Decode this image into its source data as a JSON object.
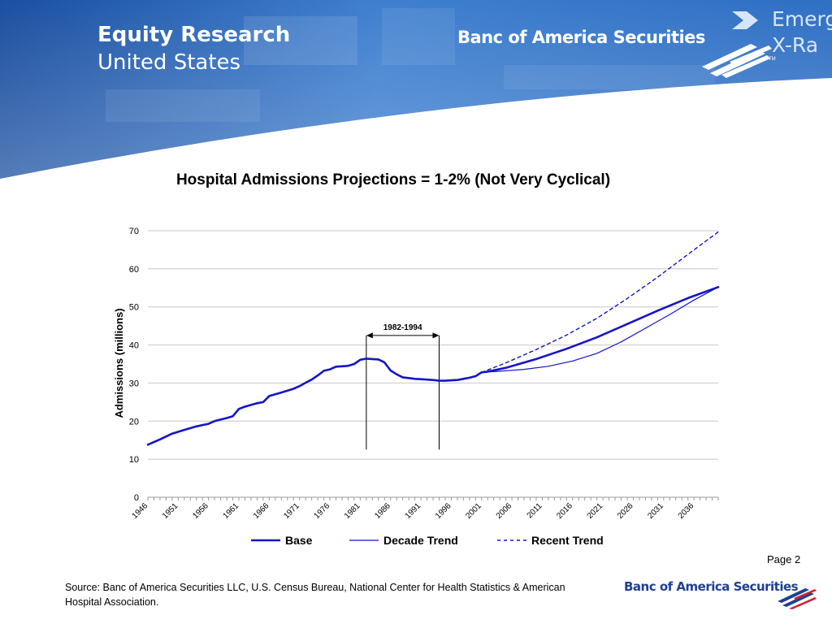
{
  "header": {
    "title": "Equity Research",
    "subtitle": "United States",
    "brand": "Banc of America Securities",
    "corner_text": [
      "Emerg",
      "X-Ra"
    ],
    "colors": {
      "banner": "#2f6fc4",
      "banner_dark": "#1b4fa0"
    },
    "icons": [
      "arrow-right-icon",
      "bank-flag-logo-icon"
    ]
  },
  "footer": {
    "page": "Page 2",
    "source": "Source: Banc of America Securities LLC, U.S. Census Bureau, National Center for Health Statistics & American Hospital Association.",
    "brand": "Banc of America Securities"
  },
  "chart_data": {
    "type": "line",
    "title": "Hospital Admissions Projections = 1-2% (Not Very Cyclical)",
    "ylabel": "Admissions (millions)",
    "xlabel": "",
    "ylim": [
      0,
      70
    ],
    "yticks": [
      0,
      10,
      20,
      30,
      40,
      50,
      60,
      70
    ],
    "xlim": [
      1946,
      2040
    ],
    "xticks": [
      "1946",
      "1951",
      "1956",
      "1961",
      "1966",
      "1971",
      "1976",
      "1981",
      "1986",
      "1991",
      "1996",
      "2001",
      "2006",
      "2011",
      "2016",
      "2021",
      "2026",
      "2031",
      "2036"
    ],
    "grid": true,
    "legend_position": "bottom",
    "annotation": {
      "label": "1982-1994",
      "x_start": 1982,
      "x_end": 1994
    },
    "series": [
      {
        "name": "Base",
        "color": "#1414c8",
        "style": "solid-thick",
        "x": [
          1946,
          1948,
          1950,
          1952,
          1954,
          1956,
          1957,
          1959,
          1960,
          1961,
          1962,
          1964,
          1965,
          1966,
          1968,
          1970,
          1971,
          1972,
          1973,
          1974,
          1975,
          1976,
          1977,
          1978,
          1979,
          1980,
          1981,
          1982,
          1983,
          1984,
          1985,
          1986,
          1987,
          1988,
          1989,
          1990,
          1991,
          1992,
          1993,
          1994,
          1995,
          1996,
          1997,
          1998,
          1999,
          2000,
          2001,
          2002,
          2005,
          2010,
          2015,
          2020,
          2025,
          2030,
          2035,
          2040
        ],
        "y": [
          13.8,
          15.2,
          16.7,
          17.7,
          18.6,
          19.3,
          20.0,
          20.8,
          21.3,
          23.2,
          23.8,
          24.7,
          25.0,
          26.6,
          27.5,
          28.5,
          29.2,
          30.1,
          30.9,
          32.0,
          33.2,
          33.6,
          34.3,
          34.4,
          34.5,
          35.0,
          36.1,
          36.4,
          36.3,
          36.2,
          35.4,
          33.3,
          32.3,
          31.5,
          31.3,
          31.1,
          31.0,
          30.9,
          30.8,
          30.6,
          30.6,
          30.7,
          30.8,
          31.1,
          31.4,
          31.8,
          32.8,
          33.0,
          34.0,
          36.3,
          39.0,
          42.0,
          45.5,
          49.0,
          52.3,
          55.2
        ]
      },
      {
        "name": "Decade Trend",
        "color": "#1414c8",
        "style": "solid-thin",
        "x": [
          2001,
          2004,
          2008,
          2012,
          2016,
          2020,
          2024,
          2028,
          2032,
          2036,
          2040
        ],
        "y": [
          32.8,
          33.1,
          33.6,
          34.4,
          35.8,
          37.8,
          40.8,
          44.4,
          48.0,
          51.8,
          55.2
        ]
      },
      {
        "name": "Recent Trend",
        "color": "#1414c8",
        "style": "dashed",
        "x": [
          2001,
          2005,
          2010,
          2015,
          2020,
          2025,
          2030,
          2035,
          2040
        ],
        "y": [
          32.8,
          35.3,
          38.8,
          42.6,
          47.0,
          52.2,
          57.8,
          63.8,
          69.7
        ]
      }
    ]
  }
}
